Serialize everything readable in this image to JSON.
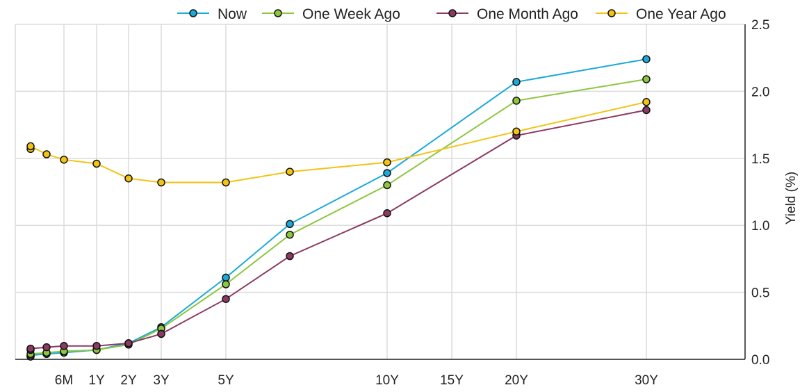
{
  "chart_data": {
    "type": "line",
    "title": "",
    "xlabel": "",
    "ylabel": "Yield (%)",
    "x_ticks": [
      {
        "label": "6M",
        "value": 0.5
      },
      {
        "label": "1Y",
        "value": 1
      },
      {
        "label": "2Y",
        "value": 2
      },
      {
        "label": "3Y",
        "value": 3
      },
      {
        "label": "5Y",
        "value": 5
      },
      {
        "label": "10Y",
        "value": 10
      },
      {
        "label": "15Y",
        "value": 15
      },
      {
        "label": "20Y",
        "value": 20
      },
      {
        "label": "30Y",
        "value": 30
      }
    ],
    "y_ticks": [
      "0.0",
      "0.5",
      "1.0",
      "1.5",
      "2.0",
      "2.5"
    ],
    "ylim": [
      0,
      2.5
    ],
    "grid": true,
    "legend_position": "top",
    "series": [
      {
        "name": "Now",
        "color": "#1ba9d8",
        "points": [
          [
            0.0833,
            0.02
          ],
          [
            0.0833,
            0.03
          ],
          [
            0.25,
            0.04
          ],
          [
            0.5,
            0.05
          ],
          [
            1,
            0.07
          ],
          [
            2,
            0.12
          ],
          [
            3,
            0.24
          ],
          [
            5,
            0.61
          ],
          [
            7,
            1.01
          ],
          [
            10,
            1.39
          ],
          [
            20,
            2.07
          ],
          [
            30,
            2.24
          ]
        ]
      },
      {
        "name": "One Week Ago",
        "color": "#8dc63f",
        "points": [
          [
            0.0833,
            0.03
          ],
          [
            0.0833,
            0.04
          ],
          [
            0.25,
            0.05
          ],
          [
            0.5,
            0.06
          ],
          [
            1,
            0.07
          ],
          [
            2,
            0.11
          ],
          [
            3,
            0.23
          ],
          [
            5,
            0.56
          ],
          [
            7,
            0.93
          ],
          [
            10,
            1.3
          ],
          [
            20,
            1.93
          ],
          [
            30,
            2.09
          ]
        ]
      },
      {
        "name": "One Month Ago",
        "color": "#8b3a62",
        "points": [
          [
            0.0833,
            0.07
          ],
          [
            0.0833,
            0.08
          ],
          [
            0.25,
            0.09
          ],
          [
            0.5,
            0.1
          ],
          [
            1,
            0.1
          ],
          [
            2,
            0.12
          ],
          [
            3,
            0.19
          ],
          [
            5,
            0.45
          ],
          [
            7,
            0.77
          ],
          [
            10,
            1.09
          ],
          [
            20,
            1.67
          ],
          [
            30,
            1.86
          ]
        ]
      },
      {
        "name": "One Year Ago",
        "color": "#f2c313",
        "points": [
          [
            0.0833,
            1.57
          ],
          [
            0.0833,
            1.59
          ],
          [
            0.25,
            1.53
          ],
          [
            0.5,
            1.49
          ],
          [
            1,
            1.46
          ],
          [
            2,
            1.35
          ],
          [
            3,
            1.32
          ],
          [
            5,
            1.32
          ],
          [
            7,
            1.4
          ],
          [
            10,
            1.47
          ],
          [
            20,
            1.7
          ],
          [
            30,
            1.92
          ]
        ]
      }
    ]
  }
}
